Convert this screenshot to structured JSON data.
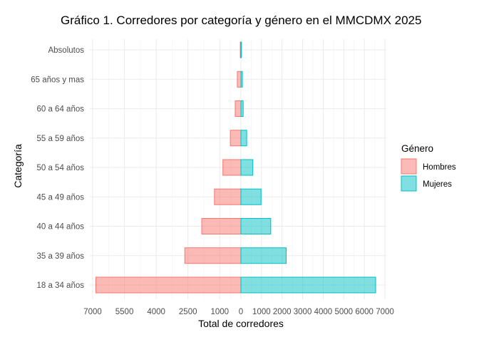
{
  "chart_data": {
    "type": "bar",
    "orientation": "horizontal",
    "layout": "population-pyramid",
    "title": "Gráfico 1. Corredores por categoría y género en el MMCDMX 2025",
    "xlabel": "Total de corredores",
    "ylabel": "Categoría",
    "categories": [
      "18 a 34 años",
      "35 a 39 años",
      "40 a 44 años",
      "45 a 49 años",
      "50 a 54 años",
      "55 a 59 años",
      "60 a 64 años",
      "65 años y mas",
      "Absolutos"
    ],
    "series": [
      {
        "name": "Hombres",
        "color": "#F8766D",
        "side": "left",
        "values": [
          6850,
          2650,
          1850,
          1250,
          850,
          500,
          270,
          170,
          30
        ]
      },
      {
        "name": "Mujeres",
        "color": "#00BFC4",
        "side": "right",
        "values": [
          6550,
          2200,
          1450,
          980,
          580,
          280,
          110,
          70,
          20
        ]
      }
    ],
    "xlim": [
      -7000,
      7000
    ],
    "x_tick_labels": [
      "7000",
      "5500",
      "4000",
      "2500",
      "1000",
      "0",
      "1000",
      "2000",
      "3000",
      "4000",
      "5000",
      "6000",
      "7000"
    ],
    "legend": {
      "title": "Género",
      "position": "right"
    },
    "grid": true
  }
}
